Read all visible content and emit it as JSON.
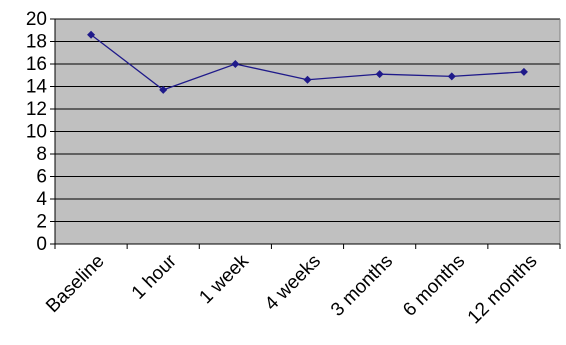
{
  "chart_data": {
    "type": "line",
    "categories": [
      "Baseline",
      "1 hour",
      "1 week",
      "4 weeks",
      "3 months",
      "6 months",
      "12 months"
    ],
    "series": [
      {
        "values": [
          18.6,
          13.7,
          16.0,
          14.6,
          15.1,
          14.9,
          15.3
        ],
        "color": "#1f1a8a"
      }
    ],
    "ylim": [
      0,
      20
    ],
    "yticks": [
      "0",
      "2",
      "4",
      "6",
      "8",
      "10",
      "12",
      "14",
      "16",
      "18",
      "20"
    ],
    "grid": true,
    "legend": "none",
    "plot_background": "#c0c0c0",
    "gridline_color": "#000000",
    "marker": "diamond"
  }
}
